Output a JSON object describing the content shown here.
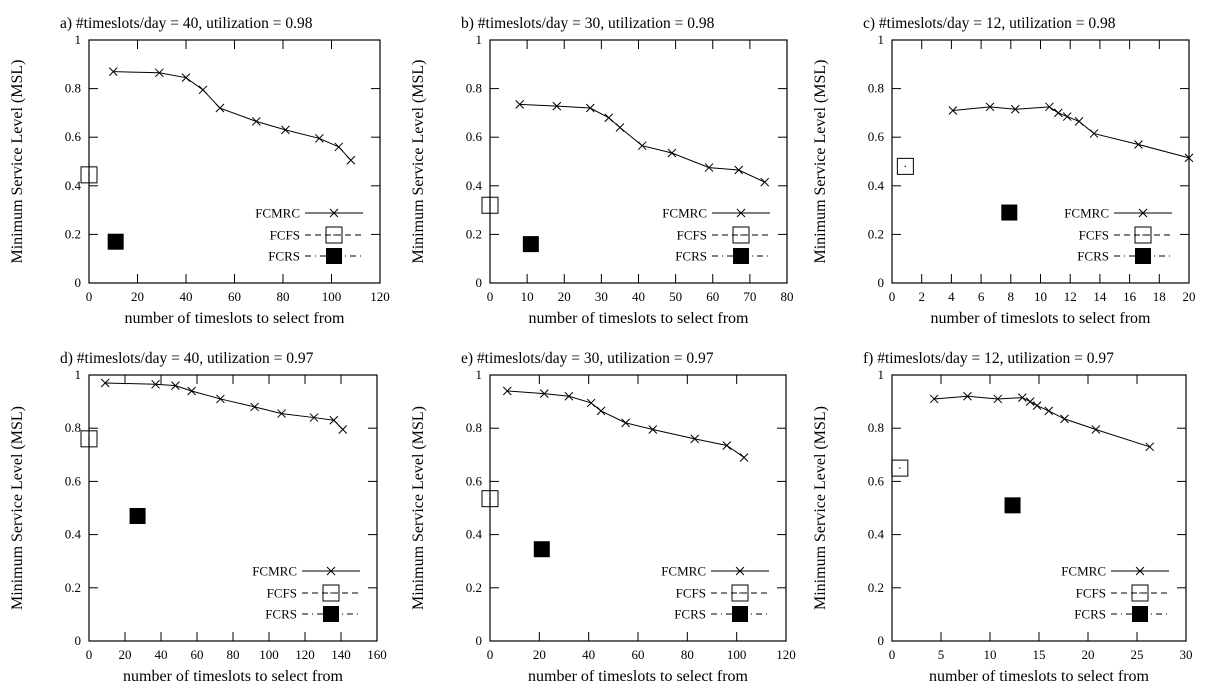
{
  "chart_data": [
    {
      "type": "line",
      "title": "a) #timeslots/day = 40, utilization =  0.98",
      "xlabel": "number of timeslots to select from",
      "ylabel": "Minimum Service Level (MSL)",
      "xlim": [
        0,
        120
      ],
      "ylim": [
        0,
        1
      ],
      "xticks": [
        0,
        20,
        40,
        60,
        80,
        100,
        120
      ],
      "yticks": [
        0,
        0.2,
        0.4,
        0.6,
        0.8,
        1
      ],
      "xtick_labels": [
        "0",
        "20",
        "40",
        "60",
        "80",
        "100",
        "120"
      ],
      "ytick_labels": [
        "0",
        "0.2",
        "0.4",
        "0.6",
        "0.8",
        "1"
      ],
      "legend_position": "bottom-right",
      "series": [
        {
          "name": "FCMRC",
          "style": "line-x",
          "x": [
            10,
            29,
            40,
            47,
            54,
            69,
            81,
            95,
            103,
            108
          ],
          "y": [
            0.87,
            0.865,
            0.845,
            0.795,
            0.72,
            0.665,
            0.63,
            0.595,
            0.56,
            0.505
          ]
        },
        {
          "name": "FCFS",
          "style": "open-square",
          "x": [
            0
          ],
          "y": [
            0.445
          ]
        },
        {
          "name": "FCRS",
          "style": "filled-square",
          "x": [
            11
          ],
          "y": [
            0.17
          ]
        }
      ]
    },
    {
      "type": "line",
      "title": "b) #timeslots/day = 30, utilization =  0.98",
      "xlabel": "number of timeslots to select from",
      "ylabel": "Minimum Service Level (MSL)",
      "xlim": [
        0,
        80
      ],
      "ylim": [
        0,
        1
      ],
      "xticks": [
        0,
        10,
        20,
        30,
        40,
        50,
        60,
        70,
        80
      ],
      "yticks": [
        0,
        0.2,
        0.4,
        0.6,
        0.8,
        1
      ],
      "xtick_labels": [
        "0",
        "10",
        "20",
        "30",
        "40",
        "50",
        "60",
        "70",
        "80"
      ],
      "ytick_labels": [
        "0",
        "0.2",
        "0.4",
        "0.6",
        "0.8",
        "1"
      ],
      "legend_position": "bottom-right",
      "series": [
        {
          "name": "FCMRC",
          "style": "line-x",
          "x": [
            8,
            18,
            27,
            32,
            35,
            41,
            49,
            59,
            67,
            74
          ],
          "y": [
            0.735,
            0.728,
            0.72,
            0.68,
            0.64,
            0.565,
            0.535,
            0.475,
            0.465,
            0.415
          ]
        },
        {
          "name": "FCFS",
          "style": "open-square",
          "x": [
            0
          ],
          "y": [
            0.32
          ]
        },
        {
          "name": "FCRS",
          "style": "filled-square",
          "x": [
            11
          ],
          "y": [
            0.16
          ]
        }
      ]
    },
    {
      "type": "line",
      "title": "c) #timeslots/day = 12, utilization =  0.98",
      "xlabel": "number of timeslots to select from",
      "ylabel": "Minimum Service Level (MSL)",
      "xlim": [
        0,
        20
      ],
      "ylim": [
        0,
        1
      ],
      "xticks": [
        0,
        2,
        4,
        6,
        8,
        10,
        12,
        14,
        16,
        18,
        20
      ],
      "yticks": [
        0,
        0.2,
        0.4,
        0.6,
        0.8,
        1
      ],
      "xtick_labels": [
        "0",
        "2",
        "4",
        "6",
        "8",
        "10",
        "12",
        "14",
        "16",
        "18",
        "20"
      ],
      "ytick_labels": [
        "0",
        "0.2",
        "0.4",
        "0.6",
        "0.8",
        "1"
      ],
      "legend_position": "bottom-right",
      "series": [
        {
          "name": "FCMRC",
          "style": "line-x",
          "x": [
            4.1,
            6.6,
            8.3,
            10.6,
            11.2,
            11.8,
            12.6,
            13.6,
            16.6,
            20
          ],
          "y": [
            0.71,
            0.725,
            0.715,
            0.725,
            0.7,
            0.685,
            0.665,
            0.615,
            0.57,
            0.515
          ]
        },
        {
          "name": "FCFS",
          "style": "open-square",
          "x": [
            0.9
          ],
          "y": [
            0.48
          ]
        },
        {
          "name": "FCRS",
          "style": "filled-square",
          "x": [
            7.9
          ],
          "y": [
            0.29
          ]
        }
      ]
    },
    {
      "type": "line",
      "title": "d) #timeslots/day = 40, utilization =  0.97",
      "xlabel": "number of timeslots to select from",
      "ylabel": "Minimum Service Level (MSL)",
      "xlim": [
        0,
        160
      ],
      "ylim": [
        0,
        1
      ],
      "xticks": [
        0,
        20,
        40,
        60,
        80,
        100,
        120,
        140,
        160
      ],
      "yticks": [
        0,
        0.2,
        0.4,
        0.6,
        0.8,
        1
      ],
      "xtick_labels": [
        "0",
        "20",
        "40",
        "60",
        "80",
        "100",
        "120",
        "140",
        "160"
      ],
      "ytick_labels": [
        "0",
        "0.2",
        "0.4",
        "0.6",
        "0.8",
        "1"
      ],
      "legend_position": "bottom-right",
      "series": [
        {
          "name": "FCMRC",
          "style": "line-x",
          "x": [
            9,
            37,
            48,
            57,
            73,
            92,
            107,
            125,
            136,
            141
          ],
          "y": [
            0.97,
            0.965,
            0.96,
            0.94,
            0.91,
            0.88,
            0.855,
            0.84,
            0.83,
            0.795
          ]
        },
        {
          "name": "FCFS",
          "style": "open-square",
          "x": [
            0
          ],
          "y": [
            0.76
          ]
        },
        {
          "name": "FCRS",
          "style": "filled-square",
          "x": [
            27
          ],
          "y": [
            0.47
          ]
        }
      ]
    },
    {
      "type": "line",
      "title": "e) #timeslots/day = 30, utilization =  0.97",
      "xlabel": "number of timeslots to select from",
      "ylabel": "Minimum Service Level (MSL)",
      "xlim": [
        0,
        120
      ],
      "ylim": [
        0,
        1
      ],
      "xticks": [
        0,
        20,
        40,
        60,
        80,
        100,
        120
      ],
      "yticks": [
        0,
        0.2,
        0.4,
        0.6,
        0.8,
        1
      ],
      "xtick_labels": [
        "0",
        "20",
        "40",
        "60",
        "80",
        "100",
        "120"
      ],
      "ytick_labels": [
        "0",
        "0.2",
        "0.4",
        "0.6",
        "0.8",
        "1"
      ],
      "legend_position": "bottom-right",
      "series": [
        {
          "name": "FCMRC",
          "style": "line-x",
          "x": [
            7,
            22,
            32,
            41,
            45,
            55,
            66,
            83,
            96,
            103
          ],
          "y": [
            0.94,
            0.93,
            0.92,
            0.895,
            0.865,
            0.82,
            0.795,
            0.76,
            0.735,
            0.69
          ]
        },
        {
          "name": "FCFS",
          "style": "open-square",
          "x": [
            0
          ],
          "y": [
            0.535
          ]
        },
        {
          "name": "FCRS",
          "style": "filled-square",
          "x": [
            21
          ],
          "y": [
            0.345
          ]
        }
      ]
    },
    {
      "type": "line",
      "title": "f) #timeslots/day = 12, utilization =  0.97",
      "xlabel": "number of timeslots to select from",
      "ylabel": "Minimum Service Level (MSL)",
      "xlim": [
        0,
        30
      ],
      "ylim": [
        0,
        1
      ],
      "xticks": [
        0,
        5,
        10,
        15,
        20,
        25,
        30
      ],
      "yticks": [
        0,
        0.2,
        0.4,
        0.6,
        0.8,
        1
      ],
      "xtick_labels": [
        "0",
        "5",
        "10",
        "15",
        "20",
        "25",
        "30"
      ],
      "ytick_labels": [
        "0",
        "0.2",
        "0.4",
        "0.6",
        "0.8",
        "1"
      ],
      "legend_position": "bottom-right",
      "series": [
        {
          "name": "FCMRC",
          "style": "line-x",
          "x": [
            4.3,
            7.7,
            10.8,
            13.3,
            14.1,
            14.8,
            16,
            17.6,
            20.8,
            26.3
          ],
          "y": [
            0.91,
            0.92,
            0.91,
            0.915,
            0.9,
            0.885,
            0.865,
            0.835,
            0.795,
            0.73
          ]
        },
        {
          "name": "FCFS",
          "style": "open-square",
          "x": [
            0.8
          ],
          "y": [
            0.65
          ]
        },
        {
          "name": "FCRS",
          "style": "filled-square",
          "x": [
            12.3
          ],
          "y": [
            0.51
          ]
        }
      ]
    }
  ]
}
